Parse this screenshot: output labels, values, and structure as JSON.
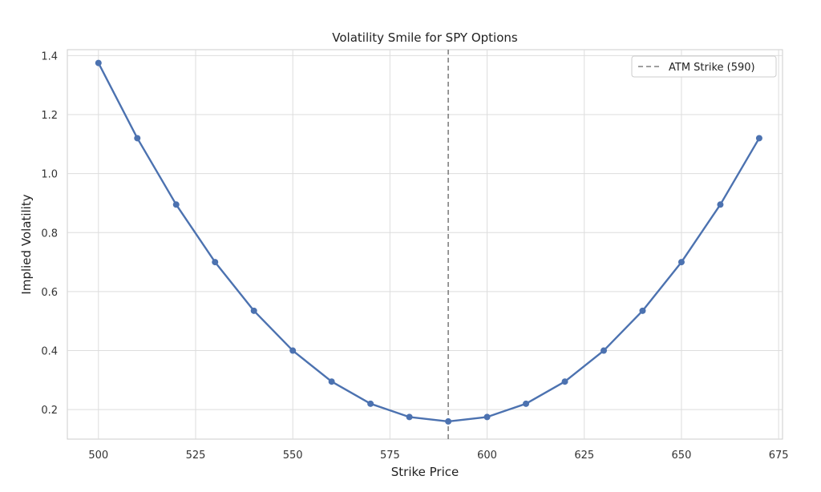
{
  "chart_data": {
    "type": "line",
    "title": "Volatility Smile for SPY Options",
    "xlabel": "Strike Price",
    "ylabel": "Implied Volatility",
    "xlim": [
      492,
      676
    ],
    "ylim": [
      0.1,
      1.42
    ],
    "xticks": [
      500,
      525,
      550,
      575,
      600,
      625,
      650,
      675
    ],
    "yticks": [
      0.2,
      0.4,
      0.6,
      0.8,
      1.0,
      1.2,
      1.4
    ],
    "ytick_labels": [
      "0.2",
      "0.4",
      "0.6",
      "0.8",
      "1.0",
      "1.2",
      "1.4"
    ],
    "grid": true,
    "legend_position": "top-right",
    "series": [
      {
        "color": "#4c72b0",
        "marker": "circle",
        "x": [
          500,
          510,
          520,
          530,
          540,
          550,
          560,
          570,
          580,
          590,
          600,
          610,
          620,
          630,
          640,
          650,
          660,
          670
        ],
        "y": [
          1.375,
          1.12,
          0.895,
          0.7,
          0.535,
          0.4,
          0.295,
          0.22,
          0.175,
          0.16,
          0.175,
          0.22,
          0.295,
          0.4,
          0.535,
          0.7,
          0.895,
          1.12
        ]
      }
    ],
    "reference_lines": [
      {
        "orientation": "vertical",
        "x": 590,
        "style": "dashed",
        "color": "#808080",
        "label": "ATM Strike (590)"
      }
    ]
  }
}
